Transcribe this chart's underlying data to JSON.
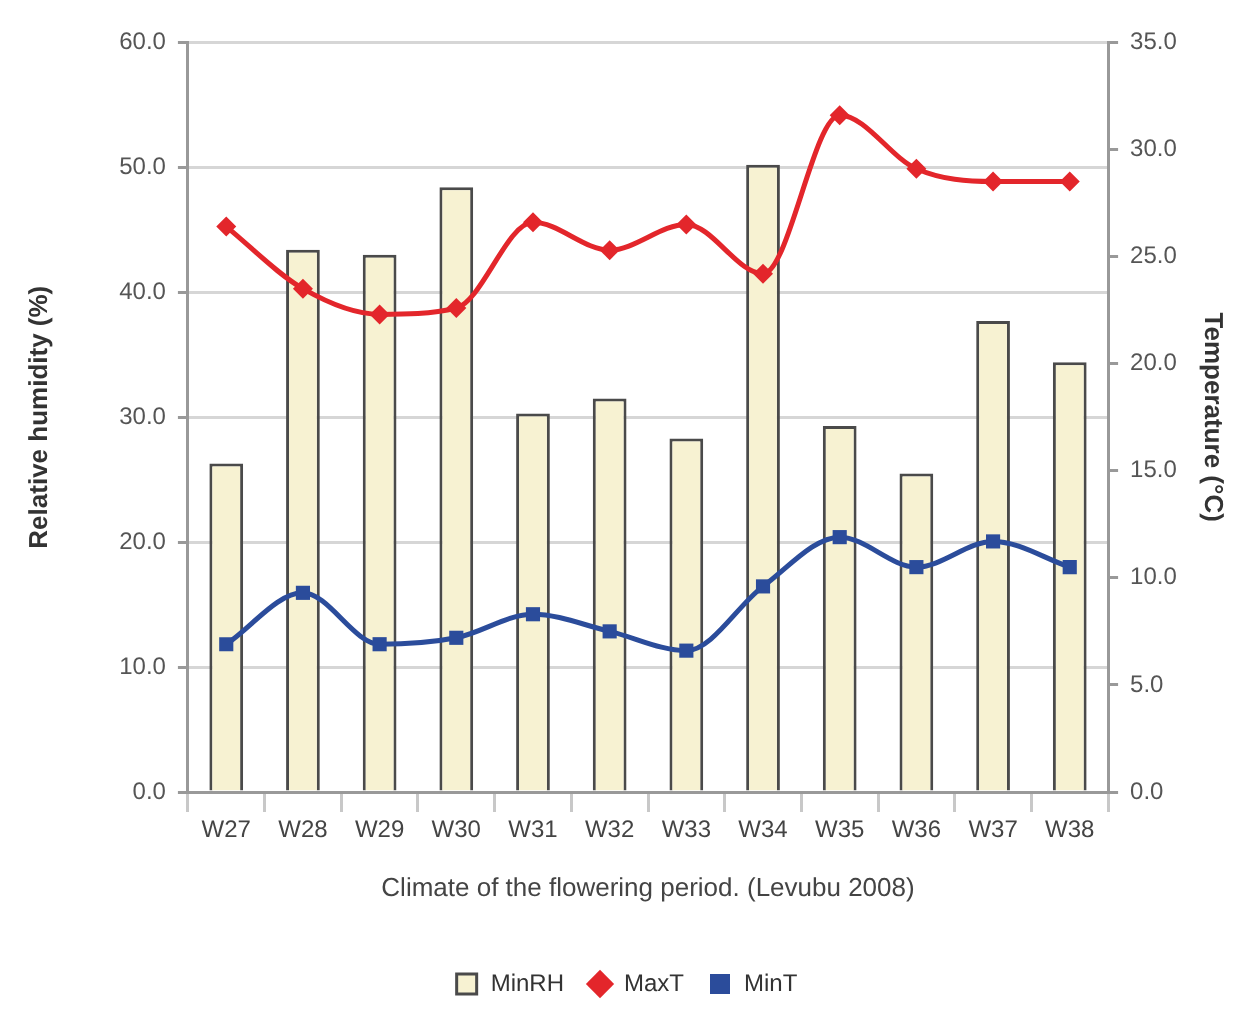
{
  "chart_data": {
    "type": "bar",
    "categories": [
      "W27",
      "W28",
      "W29",
      "W30",
      "W31",
      "W32",
      "W33",
      "W34",
      "W35",
      "W36",
      "W37",
      "W38"
    ],
    "series": [
      {
        "name": "MinRH",
        "color": "#f7f2d2",
        "values": [
          26.3,
          43.4,
          43.0,
          48.4,
          30.3,
          31.5,
          28.3,
          50.2,
          29.3,
          25.5,
          37.7,
          34.4
        ]
      },
      {
        "name": "MaxT",
        "type": "line",
        "axis": "y2",
        "marker": "diamond",
        "color": "#e3262b",
        "values": [
          26.4,
          23.5,
          22.3,
          22.6,
          26.6,
          25.3,
          26.5,
          24.2,
          31.6,
          29.1,
          28.5,
          28.5
        ]
      },
      {
        "name": "MinT",
        "type": "line",
        "axis": "y2",
        "marker": "square",
        "color": "#2b4c9b",
        "values": [
          6.9,
          9.3,
          6.9,
          7.2,
          8.3,
          7.5,
          6.6,
          9.6,
          11.9,
          10.5,
          11.7,
          10.5
        ]
      }
    ],
    "ylim": [
      0,
      60
    ],
    "yticks": [
      {
        "value": 0,
        "label": "0.0"
      },
      {
        "value": 10,
        "label": "10.0"
      },
      {
        "value": 20,
        "label": "20.0"
      },
      {
        "value": 30,
        "label": "30.0"
      },
      {
        "value": 40,
        "label": "40.0"
      },
      {
        "value": 50,
        "label": "50.0"
      },
      {
        "value": 60,
        "label": "60.0"
      }
    ],
    "y2lim": [
      0,
      35
    ],
    "y2ticks": [
      {
        "value": 0,
        "label": "0.0"
      },
      {
        "value": 5,
        "label": "5.0"
      },
      {
        "value": 10,
        "label": "10.0"
      },
      {
        "value": 15,
        "label": "15.0"
      },
      {
        "value": 20,
        "label": "20.0"
      },
      {
        "value": 25,
        "label": "25.0"
      },
      {
        "value": 30,
        "label": "30.0"
      },
      {
        "value": 35,
        "label": "35.0"
      }
    ],
    "xlabel": "Climate of the flowering period. (Levubu 2008)",
    "ylabel": "Relative humidity (%)",
    "y2label": "Temperature (°C)",
    "grid": "y",
    "legend": "bottom",
    "line_style": "solid"
  }
}
